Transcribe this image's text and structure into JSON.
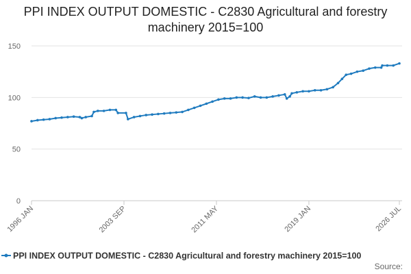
{
  "chart_data": {
    "type": "line",
    "title": "PPI INDEX OUTPUT DOMESTIC - C2830 Agricultural and forestry machinery 2015=100",
    "source": "Source:",
    "x": [
      "1996-01",
      "1996-07",
      "1997-01",
      "1997-07",
      "1998-01",
      "1998-07",
      "1999-01",
      "1999-07",
      "2000-01",
      "2000-03",
      "2000-07",
      "2001-01",
      "2001-03",
      "2001-07",
      "2002-01",
      "2002-07",
      "2003-01",
      "2003-03",
      "2003-11",
      "2004-01",
      "2004-07",
      "2005-01",
      "2005-07",
      "2006-01",
      "2006-07",
      "2007-01",
      "2007-07",
      "2008-01",
      "2008-07",
      "2009-01",
      "2009-07",
      "2010-01",
      "2010-07",
      "2011-01",
      "2011-07",
      "2012-01",
      "2012-07",
      "2013-01",
      "2013-07",
      "2014-01",
      "2014-07",
      "2015-01",
      "2015-07",
      "2016-01",
      "2016-07",
      "2017-01",
      "2017-03",
      "2017-06",
      "2017-08",
      "2018-01",
      "2018-07",
      "2019-01",
      "2019-07",
      "2020-01",
      "2020-07",
      "2021-01",
      "2021-06",
      "2021-10",
      "2022-02",
      "2022-07",
      "2023-01",
      "2023-07",
      "2024-01",
      "2024-07",
      "2025-01",
      "2025-02",
      "2025-07",
      "2026-01",
      "2026-07"
    ],
    "series": [
      {
        "name": "PPI INDEX OUTPUT DOMESTIC - C2830 Agricultural and forestry machinery 2015=100",
        "color": "#1f7bbf",
        "values": [
          77,
          78,
          78.5,
          79,
          80,
          80.5,
          81,
          81.5,
          81,
          80,
          81,
          82,
          86,
          87,
          87,
          88,
          88,
          85,
          85,
          79,
          81,
          82,
          83,
          83.5,
          84,
          84.5,
          85,
          85.5,
          86,
          88,
          90,
          92,
          94,
          96,
          98,
          99,
          99,
          100,
          100,
          99.5,
          101,
          100,
          100,
          101,
          102,
          103,
          99,
          101,
          104,
          105,
          106,
          106,
          107,
          107,
          108,
          110,
          114,
          118,
          122,
          123,
          125,
          126,
          128,
          129,
          129,
          131,
          131,
          131,
          133
        ]
      }
    ],
    "xlim": [
      "1996-01",
      "2026-07"
    ],
    "xticks": [
      {
        "value": "1996-01",
        "label": "1996 JAN"
      },
      {
        "value": "2003-09",
        "label": "2003 SEP"
      },
      {
        "value": "2011-05",
        "label": "2011 MAY"
      },
      {
        "value": "2019-01",
        "label": "2019 JAN"
      },
      {
        "value": "2026-07",
        "label": "2026 JUL"
      }
    ],
    "ylim": [
      0,
      150
    ],
    "yticks": [
      0,
      50,
      100,
      150
    ],
    "grid": true
  }
}
